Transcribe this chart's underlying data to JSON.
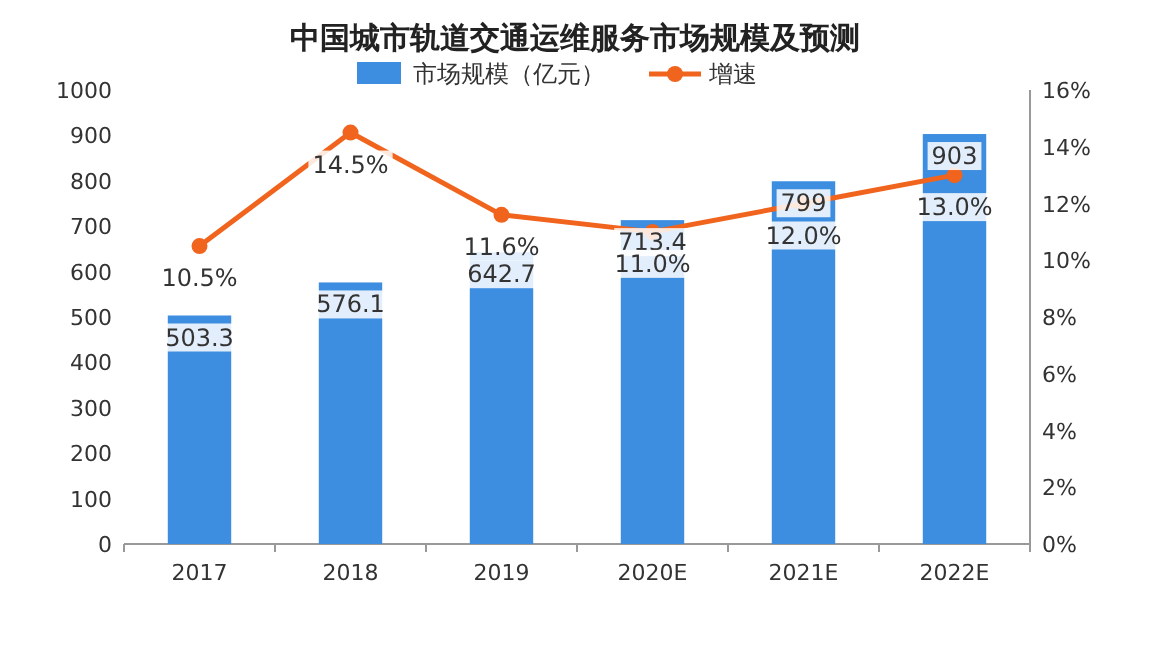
{
  "chart_data": {
    "type": "bar",
    "title": "中国城市轨道交通运维服务市场规模及预测",
    "categories": [
      "2017",
      "2018",
      "2019",
      "2020E",
      "2021E",
      "2022E"
    ],
    "series": [
      {
        "name": "市场规模（亿元）",
        "color": "#3d8ee0",
        "values": [
          503.3,
          576.1,
          642.7,
          713.4,
          799,
          903
        ],
        "value_labels": [
          "503.3",
          "576.1",
          "642.7",
          "713.4",
          "799",
          "903"
        ]
      },
      {
        "name": "增速",
        "type": "line",
        "axis": "y2",
        "color": "#f0641e",
        "values": [
          10.5,
          14.5,
          11.6,
          11.0,
          12.0,
          13.0
        ],
        "value_labels": [
          "10.5%",
          "14.5%",
          "11.6%",
          "11.0%",
          "12.0%",
          "13.0%"
        ]
      }
    ],
    "ylim": [
      0,
      1000
    ],
    "yticks": [
      0,
      100,
      200,
      300,
      400,
      500,
      600,
      700,
      800,
      900,
      1000
    ],
    "y2lim": [
      0,
      16
    ],
    "y2ticks": [
      {
        "value": 0,
        "label": "0%"
      },
      {
        "value": 2,
        "label": "2%"
      },
      {
        "value": 4,
        "label": "4%"
      },
      {
        "value": 6,
        "label": "6%"
      },
      {
        "value": 8,
        "label": "8%"
      },
      {
        "value": 10,
        "label": "10%"
      },
      {
        "value": 12,
        "label": "12%"
      },
      {
        "value": 14,
        "label": "14%"
      },
      {
        "value": 16,
        "label": "16%"
      }
    ],
    "legend": "top",
    "marker": "circle",
    "grid": false
  }
}
